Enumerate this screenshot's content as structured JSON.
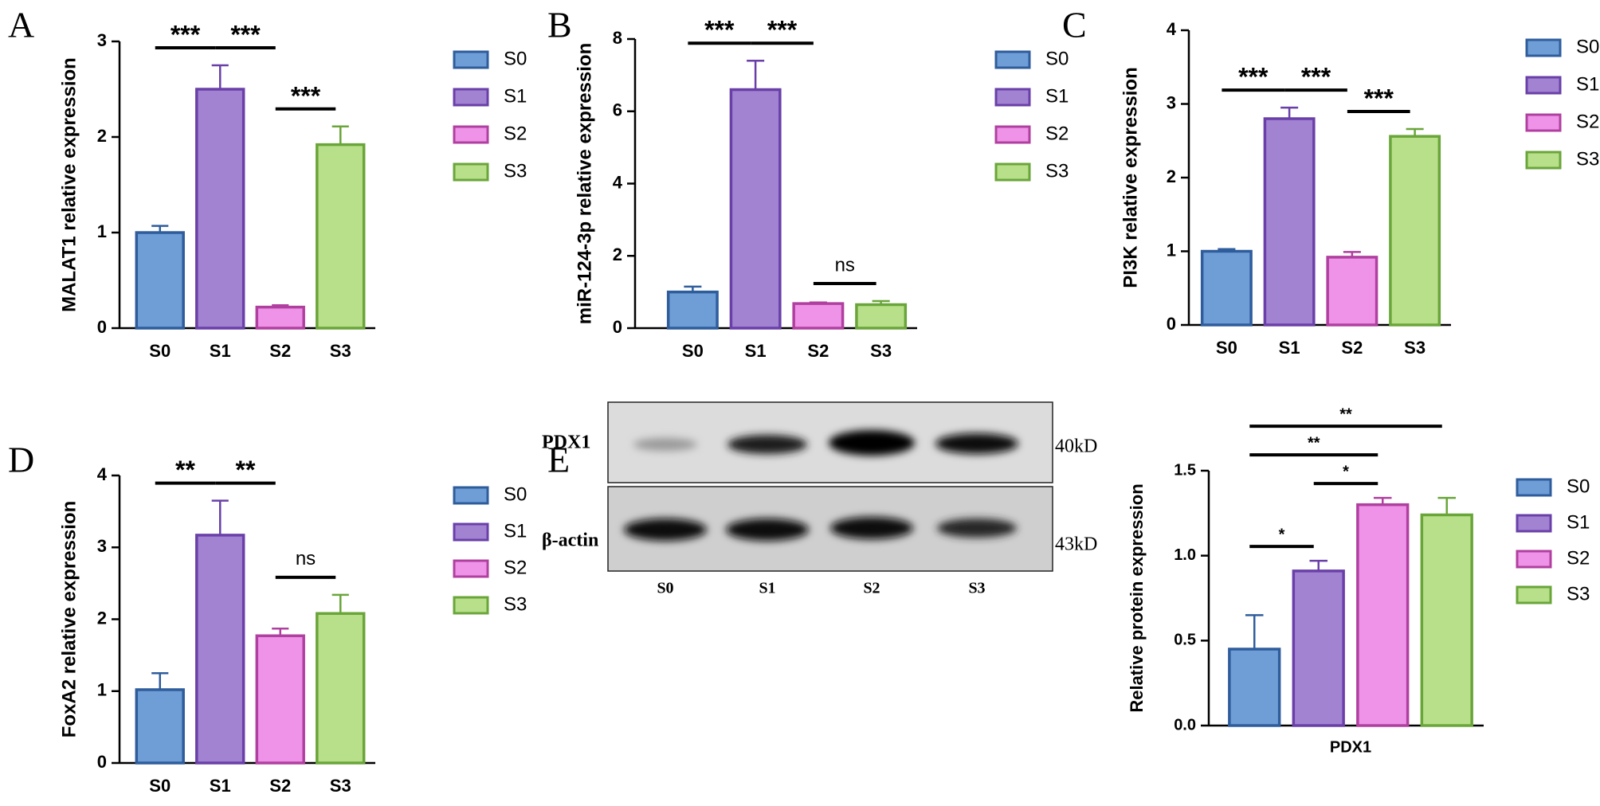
{
  "chart_data": [
    {
      "type": "bar",
      "panel": "A",
      "y_label": "MALAT1 relative expression",
      "categories": [
        "S0",
        "S1",
        "S2",
        "S3"
      ],
      "values": [
        1.0,
        2.5,
        0.22,
        1.92
      ],
      "errors": [
        0.07,
        0.25,
        0.02,
        0.19
      ],
      "colors": [
        "#6f9dd6",
        "#a283d2",
        "#ee93e8",
        "#b8e08a"
      ],
      "edge_colors": [
        "#2f5d9c",
        "#6a40a8",
        "#b0409f",
        "#6aa53a"
      ],
      "ylim": [
        0,
        3
      ],
      "yticks": [
        0,
        1,
        2,
        3
      ],
      "comparisons": [
        {
          "pair": [
            "S0",
            "S1"
          ],
          "label": "***"
        },
        {
          "pair": [
            "S1",
            "S2"
          ],
          "label": "***"
        },
        {
          "pair": [
            "S2",
            "S3"
          ],
          "label": "***"
        }
      ]
    },
    {
      "type": "bar",
      "panel": "B",
      "y_label": "miR-124-3p relative expression",
      "categories": [
        "S0",
        "S1",
        "S2",
        "S3"
      ],
      "values": [
        1.0,
        6.6,
        0.68,
        0.65
      ],
      "errors": [
        0.15,
        0.8,
        0.03,
        0.1
      ],
      "colors": [
        "#6f9dd6",
        "#a283d2",
        "#ee93e8",
        "#b8e08a"
      ],
      "edge_colors": [
        "#2f5d9c",
        "#6a40a8",
        "#b0409f",
        "#6aa53a"
      ],
      "ylim": [
        0,
        8
      ],
      "yticks": [
        0,
        2,
        4,
        6,
        8
      ],
      "comparisons": [
        {
          "pair": [
            "S0",
            "S1"
          ],
          "label": "***"
        },
        {
          "pair": [
            "S1",
            "S2"
          ],
          "label": "***"
        },
        {
          "pair": [
            "S2",
            "S3"
          ],
          "label": "ns"
        }
      ]
    },
    {
      "type": "bar",
      "panel": "C",
      "y_label": "PI3K relative expression",
      "categories": [
        "S0",
        "S1",
        "S2",
        "S3"
      ],
      "values": [
        1.0,
        2.8,
        0.92,
        2.56
      ],
      "errors": [
        0.03,
        0.15,
        0.07,
        0.1
      ],
      "colors": [
        "#6f9dd6",
        "#a283d2",
        "#ee93e8",
        "#b8e08a"
      ],
      "edge_colors": [
        "#2f5d9c",
        "#6a40a8",
        "#b0409f",
        "#6aa53a"
      ],
      "ylim": [
        0,
        4
      ],
      "yticks": [
        0,
        1,
        2,
        3,
        4
      ],
      "comparisons": [
        {
          "pair": [
            "S0",
            "S1"
          ],
          "label": "***"
        },
        {
          "pair": [
            "S1",
            "S2"
          ],
          "label": "***"
        },
        {
          "pair": [
            "S2",
            "S3"
          ],
          "label": "***"
        }
      ]
    },
    {
      "type": "bar",
      "panel": "D",
      "y_label": "FoxA2 relative expression",
      "categories": [
        "S0",
        "S1",
        "S2",
        "S3"
      ],
      "values": [
        1.02,
        3.17,
        1.77,
        2.08
      ],
      "errors": [
        0.23,
        0.48,
        0.1,
        0.26
      ],
      "colors": [
        "#6f9dd6",
        "#a283d2",
        "#ee93e8",
        "#b8e08a"
      ],
      "edge_colors": [
        "#2f5d9c",
        "#6a40a8",
        "#b0409f",
        "#6aa53a"
      ],
      "ylim": [
        0,
        4
      ],
      "yticks": [
        0,
        1,
        2,
        3,
        4
      ],
      "comparisons": [
        {
          "pair": [
            "S0",
            "S1"
          ],
          "label": "**"
        },
        {
          "pair": [
            "S1",
            "S2"
          ],
          "label": "**"
        },
        {
          "pair": [
            "S2",
            "S3"
          ],
          "label": "ns"
        }
      ]
    },
    {
      "type": "bar",
      "panel": "E",
      "y_label": "Relative protein expression",
      "x_label": "PDX1",
      "categories": [
        "S0",
        "S1",
        "S2",
        "S3"
      ],
      "values": [
        0.45,
        0.91,
        1.3,
        1.24
      ],
      "errors": [
        0.2,
        0.06,
        0.04,
        0.1
      ],
      "colors": [
        "#6f9dd6",
        "#a283d2",
        "#ee93e8",
        "#b8e08a"
      ],
      "edge_colors": [
        "#2f5d9c",
        "#6a40a8",
        "#b0409f",
        "#6aa53a"
      ],
      "ylim": [
        0,
        1.5
      ],
      "yticks": [
        {
          "value": 0,
          "label": "0.0"
        },
        0.5,
        {
          "value": 1,
          "label": "1.0"
        },
        1.5
      ],
      "comparisons": [
        {
          "pair": [
            "S0",
            "S1"
          ],
          "label": "*"
        },
        {
          "pair": [
            "S1",
            "S2"
          ],
          "label": "*"
        },
        {
          "pair": [
            "S0",
            "S2"
          ],
          "label": "**"
        },
        {
          "pair": [
            "S0",
            "S3"
          ],
          "label": "**"
        }
      ]
    }
  ],
  "blot": {
    "rows": [
      {
        "label": "PDX1",
        "size": "40kD"
      },
      {
        "label": "β-actin",
        "size": "43kD"
      }
    ],
    "lanes": [
      "S0",
      "S1",
      "S2",
      "S3"
    ]
  }
}
